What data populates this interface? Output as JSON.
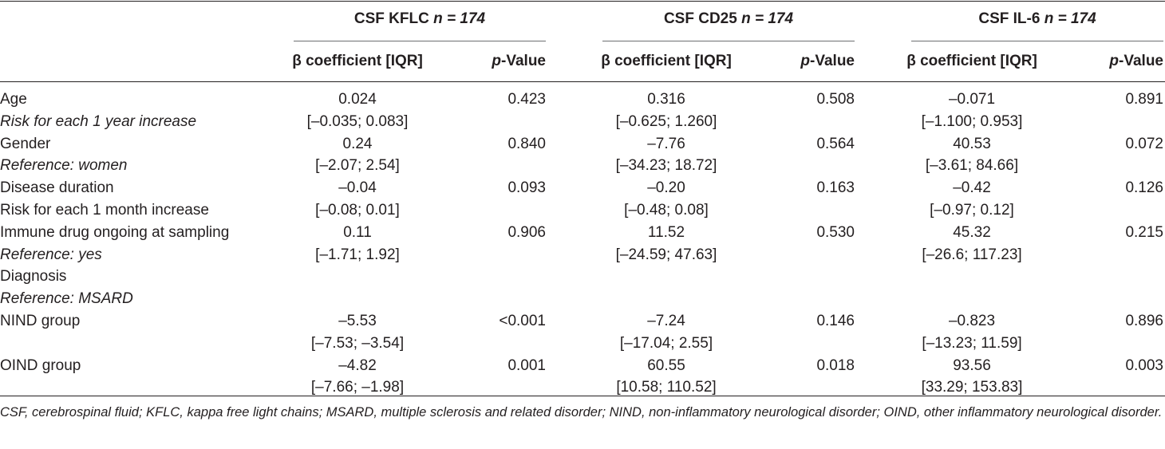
{
  "header": {
    "groups": [
      {
        "name": "CSF KFLC",
        "n": "n = 174"
      },
      {
        "name": "CSF CD25",
        "n": "n = 174"
      },
      {
        "name": "CSF IL-6",
        "n": "n = 174"
      }
    ],
    "beta_label": "β coefficient [IQR]",
    "p_italic": "p",
    "p_suffix": "-Value"
  },
  "rows": [
    {
      "label": "Age",
      "italic": false,
      "cells": [
        "0.024",
        "0.423",
        "0.316",
        "0.508",
        "–0.071",
        "0.891"
      ]
    },
    {
      "label": "Risk for each 1 year increase",
      "italic": true,
      "cells": [
        "[–0.035; 0.083]",
        "",
        "[–0.625; 1.260]",
        "",
        "[–1.100; 0.953]",
        ""
      ]
    },
    {
      "label": "Gender",
      "italic": false,
      "cells": [
        "0.24",
        "0.840",
        "–7.76",
        "0.564",
        "40.53",
        "0.072"
      ]
    },
    {
      "label": "Reference: women",
      "italic": true,
      "cells": [
        "[–2.07; 2.54]",
        "",
        "[–34.23; 18.72]",
        "",
        "[–3.61; 84.66]",
        ""
      ]
    },
    {
      "label": "Disease duration",
      "italic": false,
      "cells": [
        "–0.04",
        "0.093",
        "–0.20",
        "0.163",
        "–0.42",
        "0.126"
      ]
    },
    {
      "label": "Risk for each 1 month increase",
      "italic": false,
      "cells": [
        "[–0.08; 0.01]",
        "",
        "[–0.48; 0.08]",
        "",
        "[–0.97; 0.12]",
        ""
      ]
    },
    {
      "label": "Immune drug ongoing at sampling",
      "italic": false,
      "cells": [
        "0.11",
        "0.906",
        "11.52",
        "0.530",
        "45.32",
        "0.215"
      ]
    },
    {
      "label": "Reference: yes",
      "italic": true,
      "cells": [
        "[–1.71; 1.92]",
        "",
        "[–24.59; 47.63]",
        "",
        "[–26.6; 117.23]",
        ""
      ]
    },
    {
      "label": "Diagnosis",
      "italic": false,
      "cells": [
        "",
        "",
        "",
        "",
        "",
        ""
      ]
    },
    {
      "label": "Reference: MSARD",
      "italic": true,
      "cells": [
        "",
        "",
        "",
        "",
        "",
        ""
      ]
    },
    {
      "label": "NIND group",
      "italic": false,
      "cells": [
        "–5.53",
        "<0.001",
        "–7.24",
        "0.146",
        "–0.823",
        "0.896"
      ]
    },
    {
      "label": "",
      "italic": false,
      "cells": [
        "[–7.53; –3.54]",
        "",
        "[–17.04; 2.55]",
        "",
        "[–13.23; 11.59]",
        ""
      ]
    },
    {
      "label": "OIND group",
      "italic": false,
      "cells": [
        "–4.82",
        "0.001",
        "60.55",
        "0.018",
        "93.56",
        "0.003"
      ]
    },
    {
      "label": "",
      "italic": false,
      "cells": [
        "[–7.66; –1.98]",
        "",
        "[10.58; 110.52]",
        "",
        "[33.29; 153.83]",
        ""
      ]
    }
  ],
  "footnote": "CSF, cerebrospinal fluid; KFLC, kappa free light chains; MSARD, multiple sclerosis and related disorder; NIND, non-inflammatory neurological disorder; OIND, other inflammatory neurological disorder."
}
